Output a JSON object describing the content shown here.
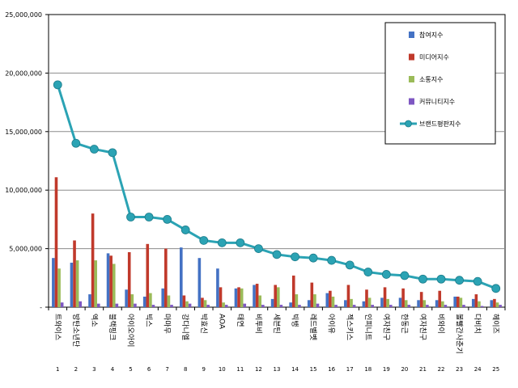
{
  "chart_data": {
    "type": "bar",
    "ylim": [
      0,
      25000000
    ],
    "ytick_values": [
      0,
      5000000,
      10000000,
      15000000,
      20000000,
      25000000
    ],
    "ytick_labels": [
      "-",
      "5,000,000",
      "10,000,000",
      "15,000,000",
      "20,000,000",
      "25,000,000"
    ],
    "index_labels": [
      "1",
      "2",
      "3",
      "4",
      "5",
      "6",
      "7",
      "8",
      "9",
      "10",
      "11",
      "12",
      "13",
      "14",
      "15",
      "16",
      "17",
      "18",
      "19",
      "20",
      "21",
      "22",
      "23",
      "24",
      "25"
    ],
    "categories": [
      "트와이스",
      "방탄소년단",
      "엑소",
      "블랙핑크",
      "아이오아이",
      "빅스",
      "마마무",
      "강다니엘",
      "박효신",
      "AOA",
      "태연",
      "비투비",
      "세븐틴",
      "빅뱅",
      "레드벨벳",
      "아이유",
      "젝스키스",
      "인피니트",
      "여자친구",
      "한동근",
      "여자친구",
      "비와이",
      "볼빨간사춘기",
      "다비치",
      "헤이즈"
    ],
    "grid": true,
    "legend_position": "top-right",
    "series": [
      {
        "name": "참여지수",
        "kind": "bar",
        "color": "#4472C4",
        "values": [
          4200000,
          3800000,
          1100000,
          4600000,
          1500000,
          900000,
          1600000,
          5100000,
          4200000,
          3300000,
          1600000,
          1900000,
          700000,
          400000,
          600000,
          1200000,
          600000,
          500000,
          800000,
          800000,
          600000,
          600000,
          900000,
          700000,
          600000
        ]
      },
      {
        "name": "미디어지수",
        "kind": "bar",
        "color": "#C0392B",
        "values": [
          11100000,
          5700000,
          8000000,
          4400000,
          4700000,
          5400000,
          5000000,
          1000000,
          800000,
          1700000,
          1700000,
          2000000,
          1900000,
          2700000,
          2100000,
          1400000,
          1900000,
          1500000,
          1700000,
          1600000,
          1300000,
          1400000,
          900000,
          1100000,
          700000
        ]
      },
      {
        "name": "소통지수",
        "kind": "bar",
        "color": "#9BBB59",
        "values": [
          3300000,
          4000000,
          4000000,
          3700000,
          1100000,
          1200000,
          1000000,
          500000,
          600000,
          400000,
          1600000,
          1000000,
          1700000,
          1100000,
          1100000,
          900000,
          700000,
          800000,
          700000,
          600000,
          600000,
          500000,
          800000,
          500000,
          400000
        ]
      },
      {
        "name": "커뮤니티지수",
        "kind": "bar",
        "color": "#7E57C2",
        "values": [
          400000,
          500000,
          300000,
          300000,
          300000,
          200000,
          200000,
          300000,
          200000,
          200000,
          300000,
          200000,
          200000,
          200000,
          300000,
          200000,
          200000,
          200000,
          200000,
          200000,
          200000,
          200000,
          200000,
          100000,
          200000
        ]
      },
      {
        "name": "브랜드평판지수",
        "kind": "line",
        "color": "#2BA3B4",
        "values": [
          19000000,
          14000000,
          13500000,
          13200000,
          7700000,
          7700000,
          7500000,
          6600000,
          5700000,
          5500000,
          5500000,
          5000000,
          4500000,
          4300000,
          4200000,
          4000000,
          3600000,
          3000000,
          2800000,
          2700000,
          2400000,
          2400000,
          2300000,
          2200000,
          1600000
        ]
      }
    ]
  }
}
